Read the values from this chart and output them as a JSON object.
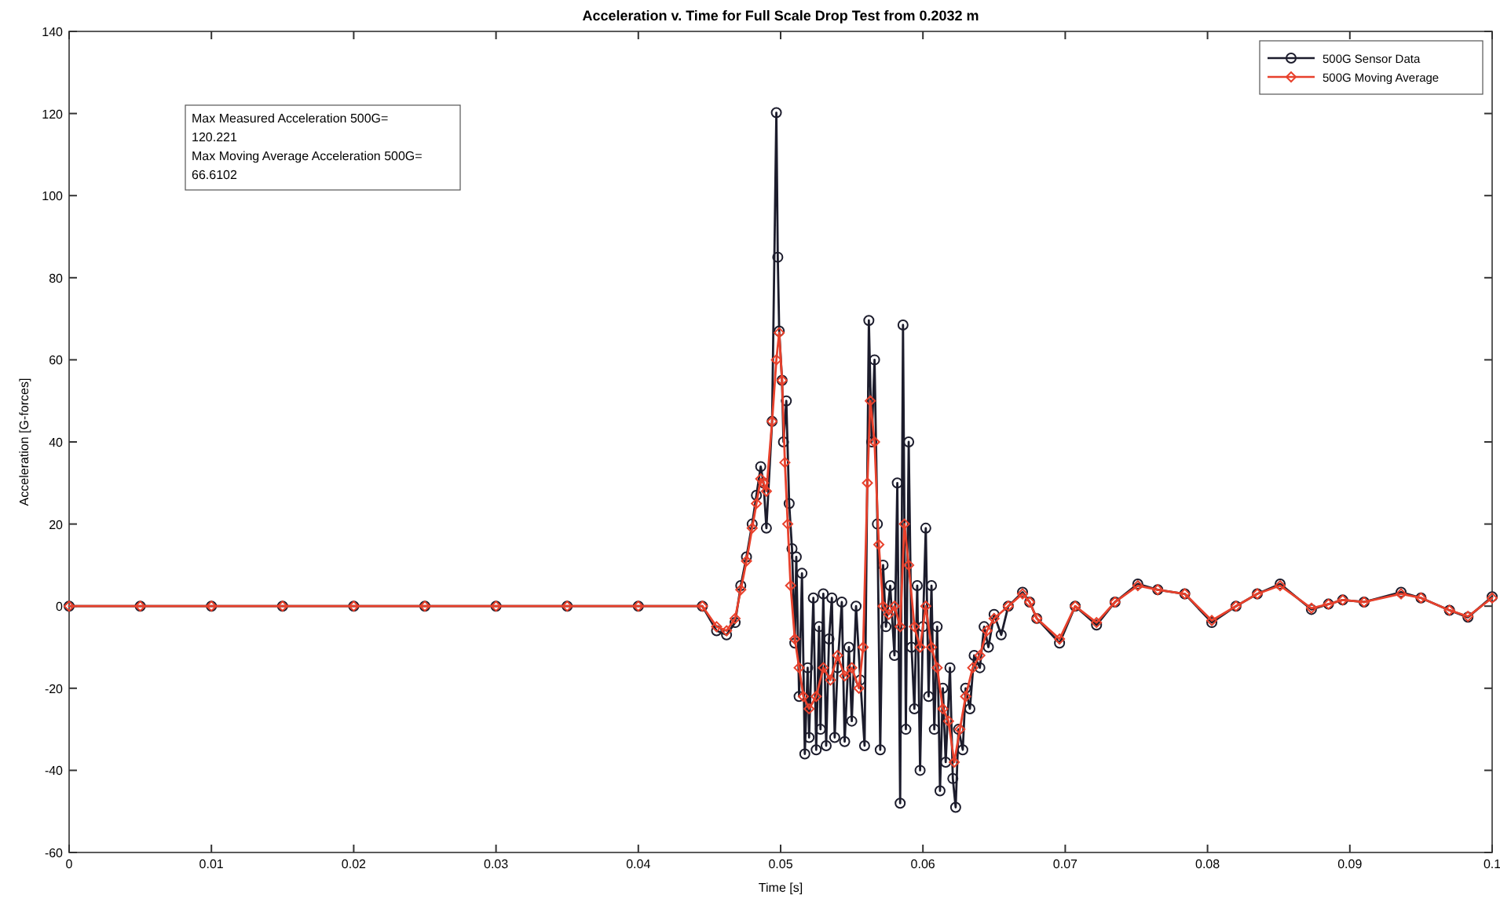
{
  "chart_data": {
    "type": "line",
    "title": "Acceleration v. Time for Full Scale Drop Test from 0.2032 m",
    "xlabel": "Time [s]",
    "ylabel": "Acceleration [G-forces]",
    "annotations": [
      "Max Measured Acceleration 500G=",
      "120.221",
      "Max Moving Average Acceleration 500G=",
      "66.6102"
    ],
    "xlim": [
      0,
      0.1
    ],
    "xticks": [
      0,
      0.01,
      0.02,
      0.03,
      0.04,
      0.05,
      0.06,
      0.07,
      0.08,
      0.09,
      0.1
    ],
    "ylim": [
      -60,
      140
    ],
    "yticks": [
      -60,
      -40,
      -20,
      0,
      20,
      40,
      60,
      80,
      100,
      120,
      140
    ],
    "grid": false,
    "legend": "top right",
    "line_style": "solid",
    "series": [
      {
        "name": "500G Sensor Data",
        "color": "#1c1c2c",
        "marker": "circle",
        "x": [
          0,
          0.005,
          0.01,
          0.015,
          0.02,
          0.025,
          0.03,
          0.035,
          0.04,
          0.0445,
          0.0455,
          0.0462,
          0.0468,
          0.0472,
          0.0476,
          0.048,
          0.0483,
          0.0486,
          0.0488,
          0.049,
          0.0494,
          0.0497,
          0.0498,
          0.0499,
          0.0501,
          0.0502,
          0.0504,
          0.0506,
          0.0508,
          0.051,
          0.0511,
          0.0513,
          0.0515,
          0.0517,
          0.0519,
          0.052,
          0.0523,
          0.0525,
          0.0527,
          0.0528,
          0.053,
          0.0532,
          0.0534,
          0.0536,
          0.0538,
          0.054,
          0.0543,
          0.0545,
          0.0548,
          0.055,
          0.0553,
          0.0556,
          0.0559,
          0.0562,
          0.0564,
          0.0566,
          0.0568,
          0.057,
          0.0572,
          0.0574,
          0.0577,
          0.058,
          0.0582,
          0.0584,
          0.0586,
          0.0588,
          0.059,
          0.0592,
          0.0594,
          0.0596,
          0.0598,
          0.06,
          0.0602,
          0.0604,
          0.0606,
          0.0608,
          0.061,
          0.0612,
          0.0614,
          0.0616,
          0.0619,
          0.0621,
          0.0623,
          0.0625,
          0.0628,
          0.063,
          0.0633,
          0.0636,
          0.064,
          0.0643,
          0.0646,
          0.065,
          0.0655,
          0.066,
          0.067,
          0.0675,
          0.068,
          0.0696,
          0.0707,
          0.0722,
          0.0735,
          0.0751,
          0.0765,
          0.0784,
          0.0803,
          0.082,
          0.0835,
          0.0851,
          0.0873,
          0.0885,
          0.0895,
          0.091,
          0.0936,
          0.095,
          0.097,
          0.0983,
          0.1
        ],
        "values": [
          0,
          0,
          0,
          0,
          0,
          0,
          0,
          0,
          0,
          0,
          -6,
          -7,
          -4,
          5,
          12,
          20,
          27,
          34,
          30,
          19,
          45,
          120.2,
          85,
          67,
          55,
          40,
          50,
          25,
          14,
          -9,
          12,
          -22,
          8,
          -36,
          -15,
          -32,
          2,
          -35,
          -5,
          -30,
          3,
          -34,
          -8,
          2,
          -32,
          -15,
          1,
          -33,
          -10,
          -28,
          0,
          -18,
          -34,
          69.6,
          40,
          60,
          20,
          -35,
          10,
          -5,
          5,
          -12,
          30,
          -48,
          68.5,
          -30,
          40,
          -10,
          -25,
          5,
          -40,
          -5,
          19,
          -22,
          5,
          -30,
          -5,
          -45,
          -20,
          -38,
          -15,
          -42,
          -49,
          -30,
          -35,
          -20,
          -25,
          -12,
          -15,
          -5,
          -10,
          -2,
          -7,
          0,
          3.4,
          1,
          -3,
          -9,
          0,
          -4.6,
          1,
          5.4,
          4,
          3,
          -4,
          0,
          3,
          5.4,
          -0.8,
          0.5,
          1.5,
          1,
          3.4,
          2,
          -1,
          -2.7,
          2.3
        ]
      },
      {
        "name": "500G Moving Average",
        "color": "#e8412c",
        "marker": "diamond",
        "x": [
          0,
          0.005,
          0.01,
          0.015,
          0.02,
          0.025,
          0.03,
          0.035,
          0.04,
          0.0445,
          0.0455,
          0.0462,
          0.0468,
          0.0472,
          0.0476,
          0.048,
          0.0483,
          0.0486,
          0.0488,
          0.049,
          0.0494,
          0.0497,
          0.0499,
          0.0501,
          0.0503,
          0.0505,
          0.0507,
          0.051,
          0.0513,
          0.0516,
          0.052,
          0.0525,
          0.053,
          0.0535,
          0.054,
          0.0545,
          0.055,
          0.0555,
          0.0558,
          0.0561,
          0.0563,
          0.0566,
          0.0569,
          0.0572,
          0.0576,
          0.058,
          0.0584,
          0.0587,
          0.059,
          0.0594,
          0.0598,
          0.0602,
          0.0606,
          0.061,
          0.0614,
          0.0618,
          0.0622,
          0.0626,
          0.063,
          0.0635,
          0.064,
          0.0645,
          0.065,
          0.066,
          0.067,
          0.0675,
          0.068,
          0.0696,
          0.0707,
          0.0722,
          0.0735,
          0.0751,
          0.0765,
          0.0784,
          0.0803,
          0.082,
          0.0835,
          0.0851,
          0.0873,
          0.0885,
          0.0895,
          0.091,
          0.0936,
          0.095,
          0.097,
          0.0983,
          0.1
        ],
        "values": [
          0,
          0,
          0,
          0,
          0,
          0,
          0,
          0,
          0,
          0,
          -5,
          -6,
          -3,
          4,
          11,
          19,
          25,
          31,
          30,
          28,
          45,
          60,
          66.6,
          55,
          35,
          20,
          5,
          -8,
          -15,
          -22,
          -25,
          -22,
          -15,
          -18,
          -12,
          -17,
          -15,
          -20,
          -10,
          30,
          50,
          40,
          15,
          0,
          -2,
          0,
          -5,
          20,
          10,
          -5,
          -10,
          0,
          -10,
          -15,
          -25,
          -28,
          -38,
          -30,
          -22,
          -15,
          -12,
          -6,
          -3,
          0,
          3,
          1,
          -3,
          -8,
          0,
          -4,
          1,
          5,
          4,
          3,
          -3.5,
          0,
          3,
          5,
          -0.5,
          0.5,
          1.5,
          1,
          3,
          2,
          -1,
          -2.5,
          2
        ]
      }
    ]
  }
}
